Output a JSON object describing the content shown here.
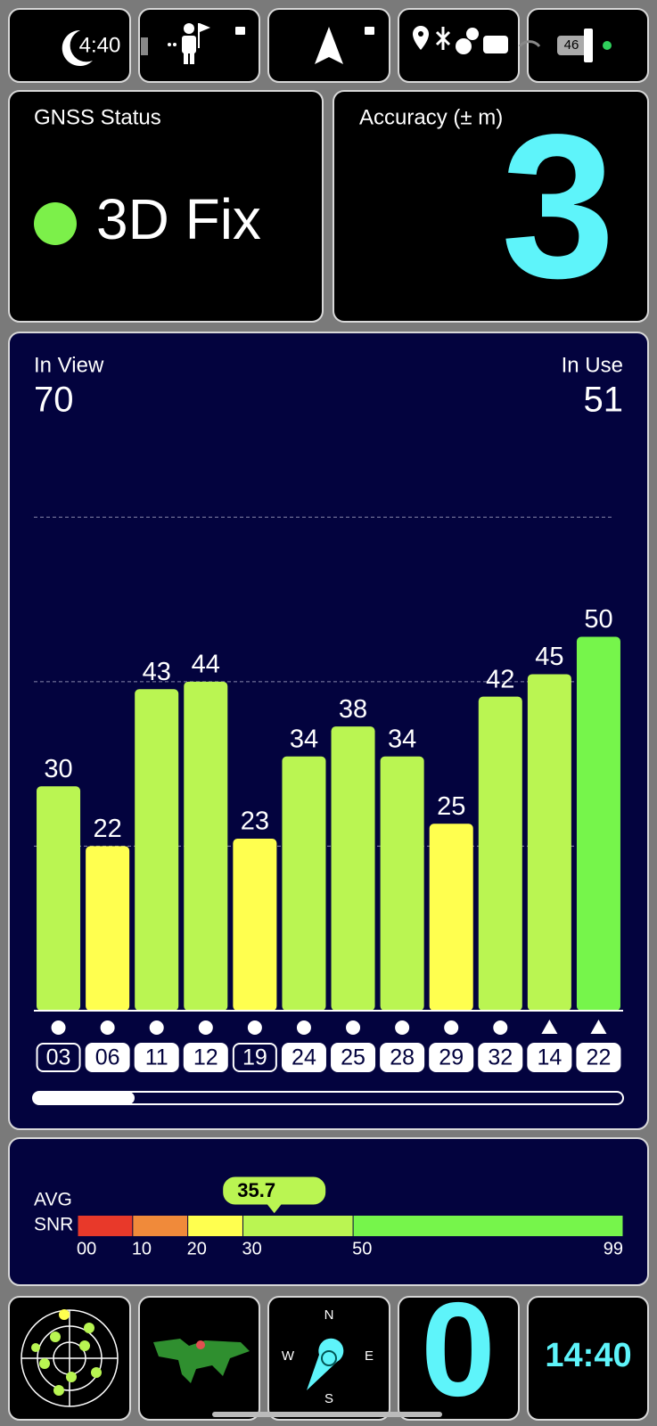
{
  "status_bar": {
    "time": "4:40",
    "battery": "46"
  },
  "gnss_status": {
    "title": "GNSS Status",
    "value": "3D Fix",
    "color": "#7cf04a"
  },
  "accuracy": {
    "title": "Accuracy (± m)",
    "value": 3,
    "color": "#5ef4fa"
  },
  "satellites": {
    "in_view_label": "In View",
    "in_view": 70,
    "in_use_label": "In Use",
    "in_use": 51
  },
  "chart_data": {
    "type": "bar",
    "categories": [
      "03",
      "06",
      "11",
      "12",
      "19",
      "24",
      "25",
      "28",
      "29",
      "32",
      "14",
      "22"
    ],
    "values": [
      30,
      22,
      43,
      44,
      23,
      34,
      38,
      34,
      25,
      42,
      45,
      50
    ],
    "colors": [
      "#baf552",
      "#ffff4f",
      "#baf552",
      "#baf552",
      "#ffff4f",
      "#baf552",
      "#baf552",
      "#baf552",
      "#ffff4f",
      "#baf552",
      "#baf552",
      "#76f54b"
    ],
    "used": [
      false,
      true,
      true,
      true,
      false,
      true,
      true,
      true,
      true,
      true,
      true,
      true
    ],
    "markers": [
      "circle",
      "circle",
      "circle",
      "circle",
      "circle",
      "circle",
      "circle",
      "circle",
      "circle",
      "circle",
      "triangle",
      "triangle"
    ],
    "ylim": [
      0,
      70
    ],
    "grid_lines": [
      22,
      44,
      66
    ],
    "grid": true
  },
  "snr": {
    "labels": [
      "AVG",
      "SNR"
    ],
    "value": 35.7,
    "xlim": [
      0,
      99
    ],
    "xticks": [
      {
        "value": 0,
        "label": "00"
      },
      10,
      20,
      30,
      50,
      99
    ],
    "bands": [
      {
        "from": 0,
        "to": 10,
        "color": "#e8392a"
      },
      {
        "from": 10,
        "to": 20,
        "color": "#f08a3a"
      },
      {
        "from": 20,
        "to": 30,
        "color": "#ffff4f"
      },
      {
        "from": 30,
        "to": 50,
        "color": "#baf552"
      },
      {
        "from": 50,
        "to": 99,
        "color": "#76f54b"
      }
    ]
  },
  "widgets": {
    "compass": [
      "N",
      "E",
      "S",
      "W"
    ],
    "count": 0,
    "time": "14:40"
  }
}
